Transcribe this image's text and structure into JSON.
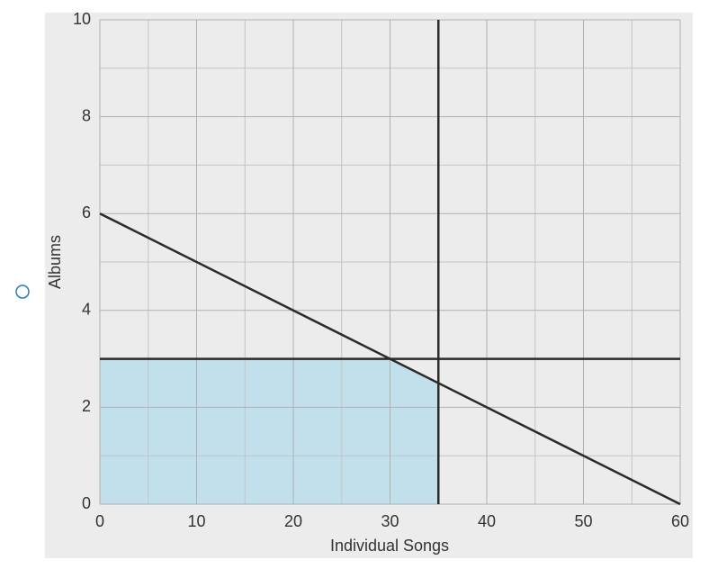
{
  "chart_data": {
    "type": "line",
    "x_label": "Individual Songs",
    "y_label": "Albums",
    "xlim": [
      0,
      60
    ],
    "ylim": [
      0,
      10
    ],
    "xticks": [
      0,
      10,
      20,
      30,
      40,
      50,
      60
    ],
    "yticks": [
      0,
      2,
      4,
      6,
      8,
      10
    ],
    "xminorticks": [
      5,
      15,
      25,
      35,
      45,
      55
    ],
    "yminorticks": [
      1,
      3,
      5,
      7,
      9
    ],
    "grid": true,
    "region": {
      "x": [
        0,
        0,
        30,
        35,
        35
      ],
      "values": [
        0,
        3,
        3,
        2.5,
        0
      ],
      "color": "#c2e0ec"
    },
    "series": [
      {
        "x": [
          0,
          60
        ],
        "values": [
          6,
          0
        ],
        "color": "#2b2b2b"
      },
      {
        "x": [
          35,
          35
        ],
        "values": [
          0,
          10
        ],
        "color": "#2b2b2b"
      },
      {
        "x": [
          0,
          60
        ],
        "values": [
          3,
          3
        ],
        "color": "#2b2b2b"
      }
    ]
  }
}
